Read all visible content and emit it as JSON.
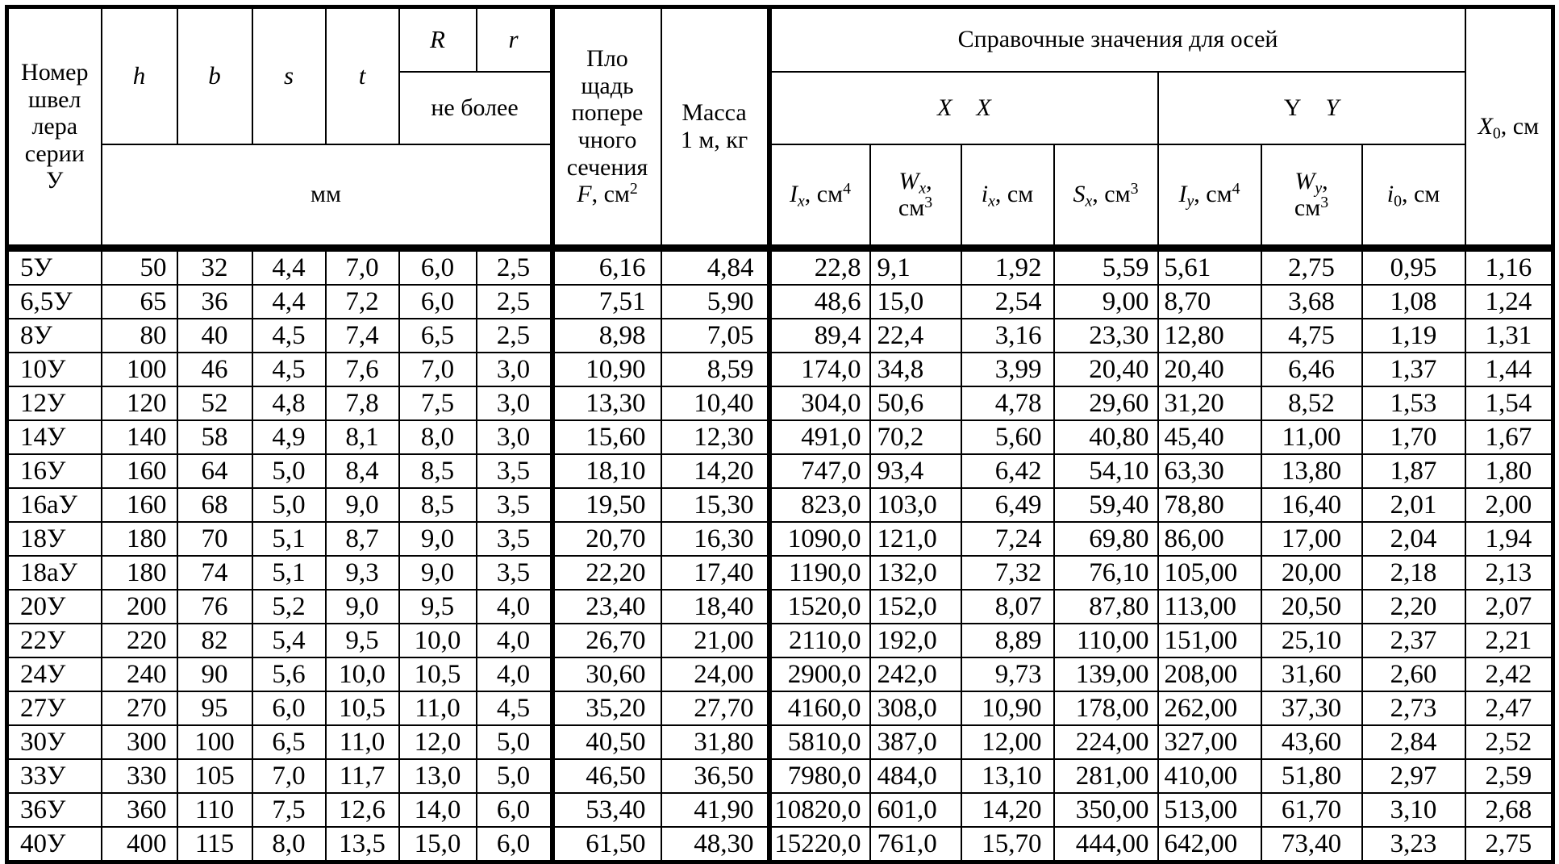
{
  "table": {
    "header": {
      "col_number": "Номер\nшвел\nлера\nсерии\nУ",
      "col_h": "h",
      "col_b": "b",
      "col_s": "s",
      "col_t": "t",
      "col_R": "R",
      "col_r": "r",
      "not_more": "не более",
      "mm_units": "мм",
      "area_html": "Пло<br>щадь<br>попере<br>чного<br>сечения<br><i>F</i>, см<sup>2</sup>",
      "mass": "Масса\n1 м, кг",
      "ref_values": "Справочные значения для осей",
      "axis_xx_html": "<i>X</i>&emsp;<i>X</i>",
      "axis_yy_html": "Y&emsp;<i>Y</i>",
      "Ix_html": "<i>I</i><sub><i>x</i></sub>, см<sup>4</sup>",
      "Wx_html": "<i>W</i><sub><i>x</i></sub>,<br>см<sup>3</sup>",
      "ix_html": "<i>i</i><sub><i>x</i></sub>, см",
      "Sx_html": "<i>S</i><sub><i>x</i></sub>, см<sup>3</sup>",
      "Iy_html": "<i>I</i><sub><i>y</i></sub>, см<sup>4</sup>",
      "Wy_html": "<i>W</i><sub><i>y</i></sub>,<br>см<sup>3</sup>",
      "i0_html": "<i>i</i><sub>0</sub>, см",
      "X0_html": "<i>X</i><sub>0</sub>, см"
    },
    "column_keys": [
      "number",
      "h",
      "b",
      "s",
      "t",
      "R",
      "r",
      "F",
      "mass",
      "Ix",
      "Wx",
      "ix",
      "Sx",
      "Iy",
      "Wy",
      "i0",
      "X0"
    ],
    "rows": [
      [
        "5У",
        "50",
        "32",
        "4,4",
        "7,0",
        "6,0",
        "2,5",
        "6,16",
        "4,84",
        "22,8",
        "9,1",
        "1,92",
        "5,59",
        "5,61",
        "2,75",
        "0,95",
        "1,16"
      ],
      [
        "6,5У",
        "65",
        "36",
        "4,4",
        "7,2",
        "6,0",
        "2,5",
        "7,51",
        "5,90",
        "48,6",
        "15,0",
        "2,54",
        "9,00",
        "8,70",
        "3,68",
        "1,08",
        "1,24"
      ],
      [
        "8У",
        "80",
        "40",
        "4,5",
        "7,4",
        "6,5",
        "2,5",
        "8,98",
        "7,05",
        "89,4",
        "22,4",
        "3,16",
        "23,30",
        "12,80",
        "4,75",
        "1,19",
        "1,31"
      ],
      [
        "10У",
        "100",
        "46",
        "4,5",
        "7,6",
        "7,0",
        "3,0",
        "10,90",
        "8,59",
        "174,0",
        "34,8",
        "3,99",
        "20,40",
        "20,40",
        "6,46",
        "1,37",
        "1,44"
      ],
      [
        "12У",
        "120",
        "52",
        "4,8",
        "7,8",
        "7,5",
        "3,0",
        "13,30",
        "10,40",
        "304,0",
        "50,6",
        "4,78",
        "29,60",
        "31,20",
        "8,52",
        "1,53",
        "1,54"
      ],
      [
        "14У",
        "140",
        "58",
        "4,9",
        "8,1",
        "8,0",
        "3,0",
        "15,60",
        "12,30",
        "491,0",
        "70,2",
        "5,60",
        "40,80",
        "45,40",
        "11,00",
        "1,70",
        "1,67"
      ],
      [
        "16У",
        "160",
        "64",
        "5,0",
        "8,4",
        "8,5",
        "3,5",
        "18,10",
        "14,20",
        "747,0",
        "93,4",
        "6,42",
        "54,10",
        "63,30",
        "13,80",
        "1,87",
        "1,80"
      ],
      [
        "16аУ",
        "160",
        "68",
        "5,0",
        "9,0",
        "8,5",
        "3,5",
        "19,50",
        "15,30",
        "823,0",
        "103,0",
        "6,49",
        "59,40",
        "78,80",
        "16,40",
        "2,01",
        "2,00"
      ],
      [
        "18У",
        "180",
        "70",
        "5,1",
        "8,7",
        "9,0",
        "3,5",
        "20,70",
        "16,30",
        "1090,0",
        "121,0",
        "7,24",
        "69,80",
        "86,00",
        "17,00",
        "2,04",
        "1,94"
      ],
      [
        "18аУ",
        "180",
        "74",
        "5,1",
        "9,3",
        "9,0",
        "3,5",
        "22,20",
        "17,40",
        "1190,0",
        "132,0",
        "7,32",
        "76,10",
        "105,00",
        "20,00",
        "2,18",
        "2,13"
      ],
      [
        "20У",
        "200",
        "76",
        "5,2",
        "9,0",
        "9,5",
        "4,0",
        "23,40",
        "18,40",
        "1520,0",
        "152,0",
        "8,07",
        "87,80",
        "113,00",
        "20,50",
        "2,20",
        "2,07"
      ],
      [
        "22У",
        "220",
        "82",
        "5,4",
        "9,5",
        "10,0",
        "4,0",
        "26,70",
        "21,00",
        "2110,0",
        "192,0",
        "8,89",
        "110,00",
        "151,00",
        "25,10",
        "2,37",
        "2,21"
      ],
      [
        "24У",
        "240",
        "90",
        "5,6",
        "10,0",
        "10,5",
        "4,0",
        "30,60",
        "24,00",
        "2900,0",
        "242,0",
        "9,73",
        "139,00",
        "208,00",
        "31,60",
        "2,60",
        "2,42"
      ],
      [
        "27У",
        "270",
        "95",
        "6,0",
        "10,5",
        "11,0",
        "4,5",
        "35,20",
        "27,70",
        "4160,0",
        "308,0",
        "10,90",
        "178,00",
        "262,00",
        "37,30",
        "2,73",
        "2,47"
      ],
      [
        "30У",
        "300",
        "100",
        "6,5",
        "11,0",
        "12,0",
        "5,0",
        "40,50",
        "31,80",
        "5810,0",
        "387,0",
        "12,00",
        "224,00",
        "327,00",
        "43,60",
        "2,84",
        "2,52"
      ],
      [
        "33У",
        "330",
        "105",
        "7,0",
        "11,7",
        "13,0",
        "5,0",
        "46,50",
        "36,50",
        "7980,0",
        "484,0",
        "13,10",
        "281,00",
        "410,00",
        "51,80",
        "2,97",
        "2,59"
      ],
      [
        "36У",
        "360",
        "110",
        "7,5",
        "12,6",
        "14,0",
        "6,0",
        "53,40",
        "41,90",
        "10820,0",
        "601,0",
        "14,20",
        "350,00",
        "513,00",
        "61,70",
        "3,10",
        "2,68"
      ],
      [
        "40У",
        "400",
        "115",
        "8,0",
        "13,5",
        "15,0",
        "6,0",
        "61,50",
        "48,30",
        "15220,0",
        "761,0",
        "15,70",
        "444,00",
        "642,00",
        "73,40",
        "3,23",
        "2,75"
      ]
    ]
  }
}
